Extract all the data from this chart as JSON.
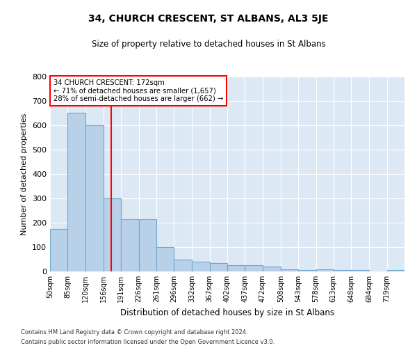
{
  "title": "34, CHURCH CRESCENT, ST ALBANS, AL3 5JE",
  "subtitle": "Size of property relative to detached houses in St Albans",
  "xlabel": "Distribution of detached houses by size in St Albans",
  "ylabel": "Number of detached properties",
  "footnote1": "Contains HM Land Registry data © Crown copyright and database right 2024.",
  "footnote2": "Contains public sector information licensed under the Open Government Licence v3.0.",
  "annotation_line1": "34 CHURCH CRESCENT: 172sqm",
  "annotation_line2": "← 71% of detached houses are smaller (1,657)",
  "annotation_line3": "28% of semi-detached houses are larger (662) →",
  "bar_color": "#b8d0e8",
  "bar_edge_color": "#6fa8d0",
  "ref_line_color": "red",
  "ref_line_x": 172,
  "bins": [
    50,
    85,
    120,
    156,
    191,
    226,
    261,
    296,
    332,
    367,
    402,
    437,
    472,
    508,
    543,
    578,
    613,
    648,
    684,
    719,
    754
  ],
  "values": [
    175,
    650,
    600,
    300,
    215,
    215,
    100,
    50,
    40,
    35,
    25,
    25,
    20,
    8,
    5,
    10,
    5,
    5,
    0,
    5
  ],
  "ylim": [
    0,
    800
  ],
  "yticks": [
    0,
    100,
    200,
    300,
    400,
    500,
    600,
    700,
    800
  ],
  "background_color": "#dde8f5",
  "grid_color": "#ffffff",
  "figsize": [
    6.0,
    5.0
  ],
  "dpi": 100
}
